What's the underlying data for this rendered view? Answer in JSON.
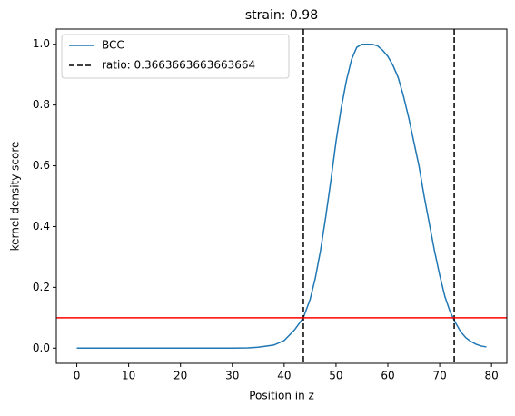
{
  "chart_data": {
    "type": "line",
    "title": "strain: 0.98",
    "x_label": "Position in z",
    "y_label": "kernel density score",
    "x": [
      0,
      10,
      20,
      30,
      33,
      35,
      38,
      40,
      42,
      43.7,
      45,
      46,
      47,
      48,
      49,
      50,
      51,
      52,
      53,
      54,
      55,
      56,
      57,
      58,
      59,
      60,
      61,
      62,
      63,
      64,
      65,
      66,
      67,
      68,
      69,
      70,
      71,
      72,
      73,
      74,
      75,
      76,
      77,
      78,
      79
    ],
    "series": [
      {
        "name": "BCC",
        "color": "#1f77b4",
        "values": [
          0,
          0,
          0,
          0,
          0.001,
          0.003,
          0.01,
          0.025,
          0.06,
          0.1,
          0.16,
          0.23,
          0.32,
          0.43,
          0.55,
          0.68,
          0.79,
          0.88,
          0.95,
          0.99,
          1.0,
          1.0,
          1.0,
          0.995,
          0.98,
          0.96,
          0.93,
          0.89,
          0.83,
          0.76,
          0.68,
          0.6,
          0.5,
          0.41,
          0.32,
          0.24,
          0.17,
          0.12,
          0.085,
          0.055,
          0.035,
          0.022,
          0.013,
          0.007,
          0.004
        ]
      }
    ],
    "vlines": {
      "name": "ratio: 0.3663663663663664",
      "color": "#000000",
      "values": [
        43.7,
        72.8
      ]
    },
    "hline": {
      "value": 0.1,
      "color": "#ff0000"
    },
    "xlim": [
      -3.95,
      82.95
    ],
    "ylim": [
      -0.05,
      1.05
    ],
    "xticks": [
      0,
      10,
      20,
      30,
      40,
      50,
      60,
      70,
      80
    ],
    "yticks": [
      {
        "value": 0,
        "label": "0.0"
      },
      0.2,
      0.4,
      0.6,
      0.8,
      {
        "value": 1,
        "label": "1.0"
      }
    ],
    "legend": "upper-left"
  }
}
